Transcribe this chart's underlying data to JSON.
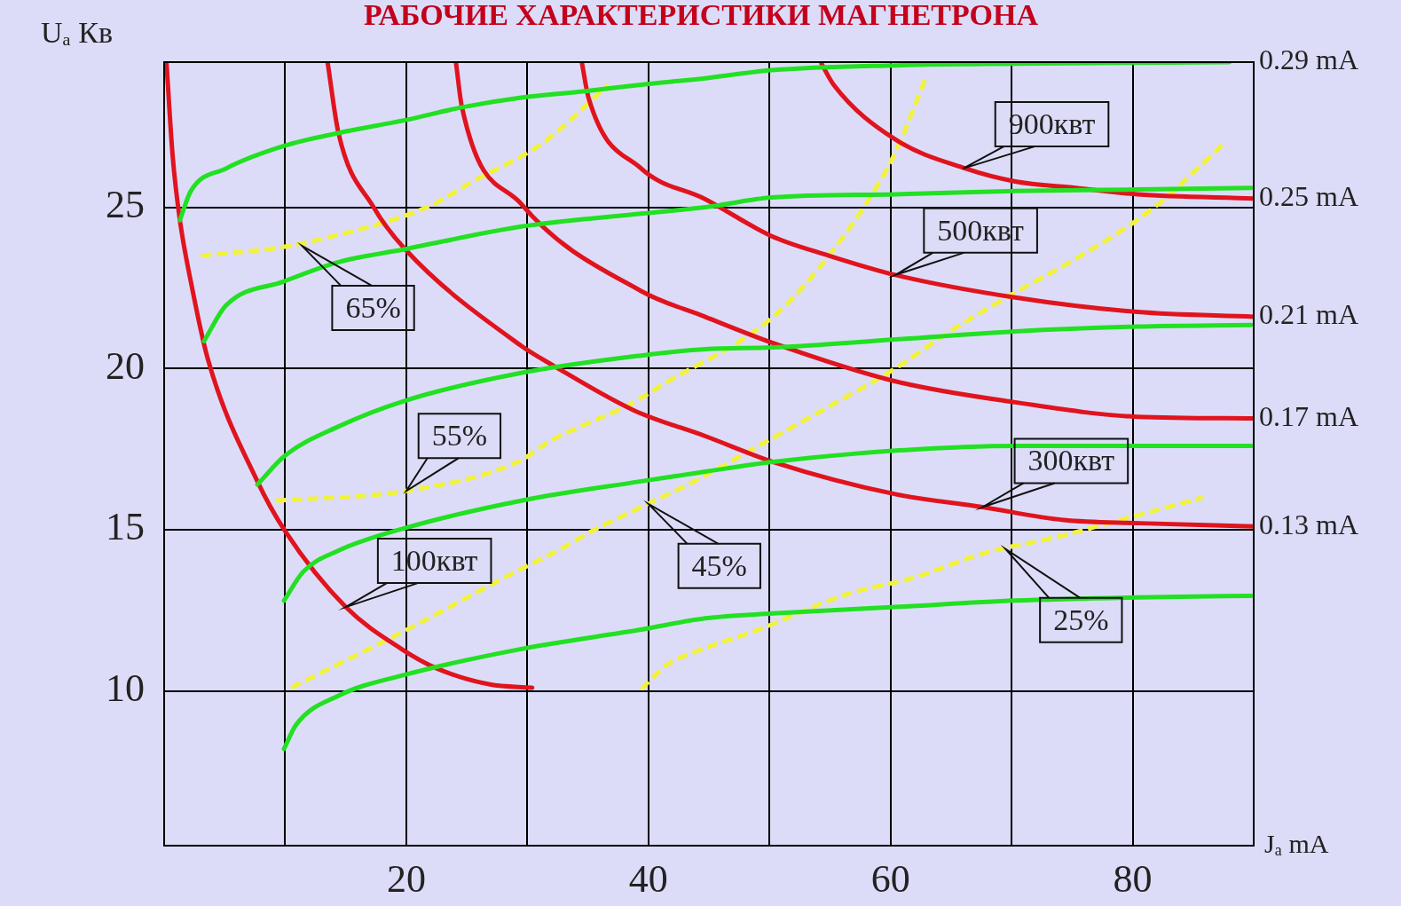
{
  "chart_data": {
    "type": "line",
    "title": "РАБОЧИЕ ХАРАКТЕРИСТИКИ МАГНЕТРОНА",
    "xlabel": "Jₐ mA",
    "ylabel": "Uₐ Кв",
    "xlim": [
      0,
      90
    ],
    "ylim": [
      5.2,
      29.5
    ],
    "xticks": [
      {
        "value": 10,
        "label": null
      },
      20,
      {
        "value": 30,
        "label": null
      },
      40,
      {
        "value": 50,
        "label": null
      },
      60,
      {
        "value": 70,
        "label": null
      },
      80,
      {
        "value": 90,
        "label": null
      }
    ],
    "yticks": [
      10,
      15,
      20,
      25
    ],
    "grid": true,
    "marker": "none",
    "line_style": "solid",
    "series": [
      {
        "color": "#22e022",
        "x": [
          1.3,
          2.2,
          5.1,
          9.9,
          14.4,
          19.9,
          24.6,
          29.5,
          34.8,
          39.4,
          44.7,
          50.2,
          60.4,
          70.3,
          88
        ],
        "values": [
          24.6,
          25.5,
          26.2,
          26.9,
          27.3,
          27.7,
          28.1,
          28.4,
          28.6,
          28.8,
          29.0,
          29.25,
          29.4,
          29.45,
          29.5
        ]
      },
      {
        "color": "#22e022",
        "x": [
          3.3,
          5.1,
          9.9,
          14.4,
          19.9,
          29.5,
          39.4,
          44.7,
          50.2,
          60.4,
          70.3,
          80.4,
          89.8
        ],
        "values": [
          20.85,
          21.95,
          22.7,
          23.3,
          23.7,
          24.4,
          24.8,
          25.0,
          25.3,
          25.4,
          25.5,
          25.55,
          25.6
        ]
      },
      {
        "color": "#22e022",
        "x": [
          7.7,
          10,
          14.4,
          19.9,
          29.5,
          39.4,
          44.7,
          50.2,
          60.4,
          70.3,
          80.4,
          89.8
        ],
        "values": [
          16.4,
          17.3,
          18.2,
          19.0,
          19.86,
          20.4,
          20.6,
          20.65,
          20.9,
          21.15,
          21.3,
          21.35
        ]
      },
      {
        "color": "#22e022",
        "x": [
          9.9,
          11.5,
          14.4,
          19.9,
          29.5,
          39.4,
          44.7,
          50.3,
          60.4,
          70.3,
          80.4,
          89.8
        ],
        "values": [
          12.8,
          13.7,
          14.35,
          15.05,
          15.9,
          16.5,
          16.8,
          17.1,
          17.45,
          17.6,
          17.6,
          17.6
        ]
      },
      {
        "color": "#22e022",
        "x": [
          9.9,
          10.9,
          14.4,
          19.9,
          29.5,
          39.4,
          44.7,
          50.3,
          60.4,
          70.3,
          80.4,
          89.8
        ],
        "values": [
          8.2,
          8.95,
          9.85,
          10.5,
          11.3,
          11.9,
          12.25,
          12.4,
          12.6,
          12.8,
          12.9,
          12.95
        ]
      },
      {
        "color": "#e0141e",
        "x": [
          0.2,
          0.7,
          1.3,
          2.2,
          3.6,
          7.7,
          10,
          15,
          19.6,
          22.5,
          26.9,
          30.4
        ],
        "values": [
          29.45,
          26.6,
          24.6,
          22.7,
          20.3,
          16.5,
          14.95,
          12.6,
          11.3,
          10.7,
          10.2,
          10.1
        ]
      },
      {
        "color": "#e0141e",
        "x": [
          13.5,
          14.4,
          17.3,
          19.9,
          29.5,
          32.1,
          38.8,
          44.7,
          50.3,
          60.4,
          67.6,
          74.3,
          80.6,
          90
        ],
        "values": [
          29.5,
          27.3,
          25.0,
          23.7,
          20.7,
          20.1,
          18.7,
          17.9,
          17.1,
          16.1,
          15.7,
          15.3,
          15.2,
          15.1
        ]
      },
      {
        "color": "#e0141e",
        "x": [
          24.1,
          24.6,
          29.5,
          39.4,
          44.7,
          50.2,
          60.4,
          70.3,
          80.4,
          90
        ],
        "values": [
          29.5,
          28.1,
          25.1,
          22.4,
          21.6,
          20.8,
          19.6,
          18.95,
          18.5,
          18.45
        ]
      },
      {
        "color": "#e0141e",
        "x": [
          34.5,
          35.05,
          39.4,
          44.7,
          50.2,
          54.9,
          60.4,
          70.3,
          80.4,
          90
        ],
        "values": [
          29.5,
          28.4,
          26.2,
          25.25,
          24.1,
          23.5,
          22.9,
          22.2,
          21.75,
          21.6
        ]
      },
      {
        "color": "#e0141e",
        "x": [
          54.3,
          55.3,
          60.4,
          66.2,
          70.3,
          75.3,
          80.4,
          90
        ],
        "values": [
          29.45,
          28.8,
          27.1,
          26.2,
          25.8,
          25.6,
          25.4,
          25.27
        ]
      },
      {
        "color": "#f2f23c",
        "line_style": "dashed",
        "x": [
          3.05,
          9.7,
          15.6,
          19.6,
          22.3,
          25.5,
          31.3,
          36.7
        ],
        "values": [
          23.5,
          23.76,
          24.26,
          24.7,
          25.1,
          25.8,
          27.0,
          28.8
        ]
      },
      {
        "color": "#f2f23c",
        "line_style": "dashed",
        "x": [
          9.2,
          20,
          29.2,
          31.9,
          35,
          38.3,
          41.2,
          50.3,
          54.7,
          58.3,
          60.4,
          62.9
        ],
        "values": [
          15.9,
          16.2,
          17.1,
          17.75,
          18.3,
          18.85,
          19.5,
          21.6,
          23.4,
          25.3,
          26.7,
          29.0
        ]
      },
      {
        "color": "#f2f23c",
        "line_style": "dashed",
        "x": [
          10.5,
          19.9,
          28.4,
          33,
          35.3,
          39.4,
          43.8,
          49.1,
          55.3,
          60.4,
          64.7,
          70.5,
          75.3,
          81.8,
          87.6
        ],
        "values": [
          10.1,
          11.87,
          13.57,
          14.45,
          14.95,
          15.7,
          16.5,
          17.6,
          18.9,
          20.0,
          21.1,
          22.4,
          23.4,
          25.0,
          27.0
        ]
      },
      {
        "color": "#f2f23c",
        "line_style": "dashed",
        "x": [
          39.4,
          41.5,
          43.8,
          49.1,
          56.4,
          61.8,
          68,
          73.5,
          78.5,
          85.8
        ],
        "values": [
          10.05,
          10.8,
          11.2,
          11.9,
          13.0,
          13.5,
          14.3,
          14.75,
          15.25,
          16.0
        ]
      }
    ],
    "annotations": [
      {
        "text": "65%",
        "x": 11.4,
        "y": 23.8
      },
      {
        "text": "55%",
        "x": 20,
        "y": 16.2
      },
      {
        "text": "45%",
        "x": 40,
        "y": 15.8
      },
      {
        "text": "25%",
        "x": 69.5,
        "y": 14.4
      },
      {
        "text": "100квт",
        "x": 15,
        "y": 12.6
      },
      {
        "text": "300квт",
        "x": 67.6,
        "y": 15.7
      },
      {
        "text": "500квт",
        "x": 60.4,
        "y": 22.9
      },
      {
        "text": "900квт",
        "x": 66,
        "y": 26.2
      },
      {
        "text": "0.29 mA",
        "x": 88,
        "y": 29.5
      },
      {
        "text": "0.25 mA",
        "x": 90,
        "y": 25.27
      },
      {
        "text": "0.21 mA",
        "x": 90,
        "y": 21.6
      },
      {
        "text": "0.17 mA",
        "x": 90,
        "y": 18.45
      },
      {
        "text": "0.13 mA",
        "x": 90,
        "y": 15.1
      }
    ]
  }
}
